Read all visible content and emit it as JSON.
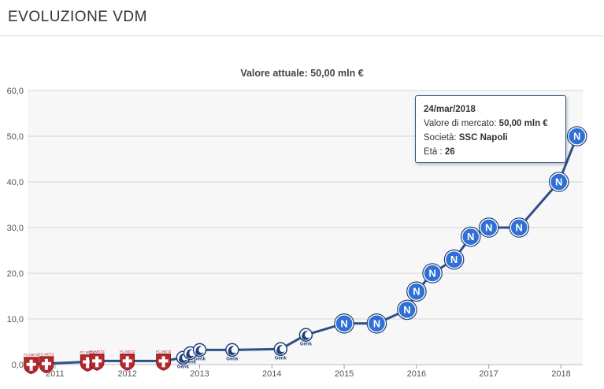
{
  "page": {
    "title": "EVOLUZIONE VDM"
  },
  "chart_data": {
    "type": "line",
    "title": "Valore attuale: 50,00 mln €",
    "xlabel": "",
    "ylabel": "",
    "xlim": [
      2010.62,
      2018.3
    ],
    "ylim": [
      0,
      60
    ],
    "y_ticks": [
      "0,0",
      "10,0",
      "20,0",
      "30,0",
      "40,0",
      "50,0",
      "60,0"
    ],
    "y_tick_values": [
      0,
      10,
      20,
      30,
      40,
      50,
      60
    ],
    "x_ticks": [
      "2011",
      "2012",
      "2013",
      "2014",
      "2015",
      "2016",
      "2017",
      "2018"
    ],
    "x_tick_values": [
      2011,
      2012,
      2013,
      2014,
      2015,
      2016,
      2017,
      2018
    ],
    "grid": true,
    "line_color": "#2f4f86",
    "series": [
      {
        "values": [
          {
            "x": 2010.67,
            "y": 0.05,
            "club": "FC Metz"
          },
          {
            "x": 2010.88,
            "y": 0.2,
            "club": "FC Metz"
          },
          {
            "x": 2011.45,
            "y": 0.6,
            "club": "FC Metz"
          },
          {
            "x": 2011.58,
            "y": 0.8,
            "club": "FC Metz"
          },
          {
            "x": 2012.0,
            "y": 0.8,
            "club": "FC Metz"
          },
          {
            "x": 2012.5,
            "y": 0.8,
            "club": "FC Metz"
          },
          {
            "x": 2012.77,
            "y": 1.5,
            "club": "Genk"
          },
          {
            "x": 2012.87,
            "y": 2.5,
            "club": "Genk"
          },
          {
            "x": 2013.0,
            "y": 3.2,
            "club": "Genk"
          },
          {
            "x": 2013.45,
            "y": 3.2,
            "club": "Genk"
          },
          {
            "x": 2014.12,
            "y": 3.4,
            "club": "Genk"
          },
          {
            "x": 2014.47,
            "y": 6.5,
            "club": "Genk"
          },
          {
            "x": 2015.0,
            "y": 9.0,
            "club": "SSC Napoli"
          },
          {
            "x": 2015.45,
            "y": 9.0,
            "club": "SSC Napoli"
          },
          {
            "x": 2015.87,
            "y": 12.0,
            "club": "SSC Napoli"
          },
          {
            "x": 2016.0,
            "y": 16.0,
            "club": "SSC Napoli"
          },
          {
            "x": 2016.22,
            "y": 20.0,
            "club": "SSC Napoli"
          },
          {
            "x": 2016.52,
            "y": 23.0,
            "club": "SSC Napoli"
          },
          {
            "x": 2016.75,
            "y": 28.0,
            "club": "SSC Napoli"
          },
          {
            "x": 2017.0,
            "y": 30.0,
            "club": "SSC Napoli"
          },
          {
            "x": 2017.42,
            "y": 30.0,
            "club": "SSC Napoli"
          },
          {
            "x": 2017.97,
            "y": 40.0,
            "club": "SSC Napoli"
          },
          {
            "x": 2018.22,
            "y": 50.0,
            "club": "SSC Napoli"
          }
        ]
      }
    ],
    "markers": {
      "FC Metz": {
        "kind": "shield",
        "color": "#b5282e",
        "text": "FC METZ"
      },
      "Genk": {
        "kind": "swirl",
        "color": "#1f3f7a",
        "text": "Genk"
      },
      "SSC Napoli": {
        "kind": "circle",
        "color": "#2f6fd6",
        "text": "N"
      }
    }
  },
  "tooltip": {
    "date": "24/mar/2018",
    "market_value_label": "Valore di mercato:",
    "market_value": "50,00 mln €",
    "club_label": "Società:",
    "club": "SSC Napoli",
    "age_label": "Età :",
    "age": "26"
  }
}
